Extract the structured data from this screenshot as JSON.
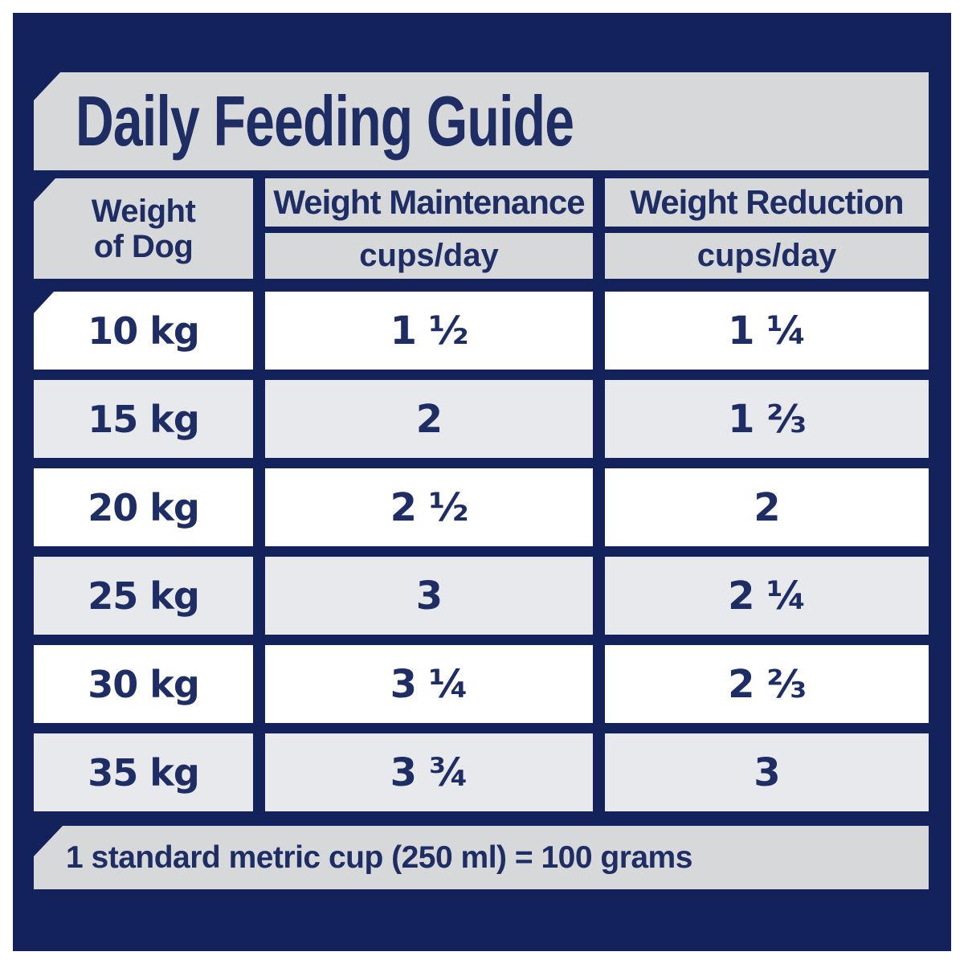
{
  "title": "Daily Feeding Guide",
  "header": {
    "weight_line1": "Weight",
    "weight_line2": "of Dog",
    "maintenance_label": "Weight Maintenance",
    "maintenance_unit": "cups/day",
    "reduction_label": "Weight Reduction",
    "reduction_unit": "cups/day"
  },
  "chart_data": {
    "type": "table",
    "title": "Daily Feeding Guide",
    "columns": [
      "Weight of Dog",
      "Weight Maintenance (cups/day)",
      "Weight Reduction (cups/day)"
    ],
    "rows": [
      {
        "weight_label": "10 kg",
        "weight_kg": 10,
        "maintenance_label": "1 ½",
        "maintenance_cups": 1.5,
        "reduction_label": "1 ¼",
        "reduction_cups": 1.25
      },
      {
        "weight_label": "15 kg",
        "weight_kg": 15,
        "maintenance_label": "2",
        "maintenance_cups": 2,
        "reduction_label": "1 ⅔",
        "reduction_cups": 1.67
      },
      {
        "weight_label": "20 kg",
        "weight_kg": 20,
        "maintenance_label": "2 ½",
        "maintenance_cups": 2.5,
        "reduction_label": "2",
        "reduction_cups": 2
      },
      {
        "weight_label": "25 kg",
        "weight_kg": 25,
        "maintenance_label": "3",
        "maintenance_cups": 3,
        "reduction_label": "2 ¼",
        "reduction_cups": 2.25
      },
      {
        "weight_label": "30 kg",
        "weight_kg": 30,
        "maintenance_label": "3 ¼",
        "maintenance_cups": 3.25,
        "reduction_label": "2 ⅔",
        "reduction_cups": 2.67
      },
      {
        "weight_label": "35 kg",
        "weight_kg": 35,
        "maintenance_label": "3 ¾",
        "maintenance_cups": 3.75,
        "reduction_label": "3",
        "reduction_cups": 3
      }
    ],
    "footnote": "1 standard metric cup (250 ml) = 100 grams"
  },
  "colors": {
    "navy_background": "#14225b",
    "text_navy": "#1e2d64",
    "band_gray": "#d7d8da",
    "row_alt_gray": "#e8e9ec",
    "row_white": "#ffffff",
    "page_background": "#ffffff"
  }
}
